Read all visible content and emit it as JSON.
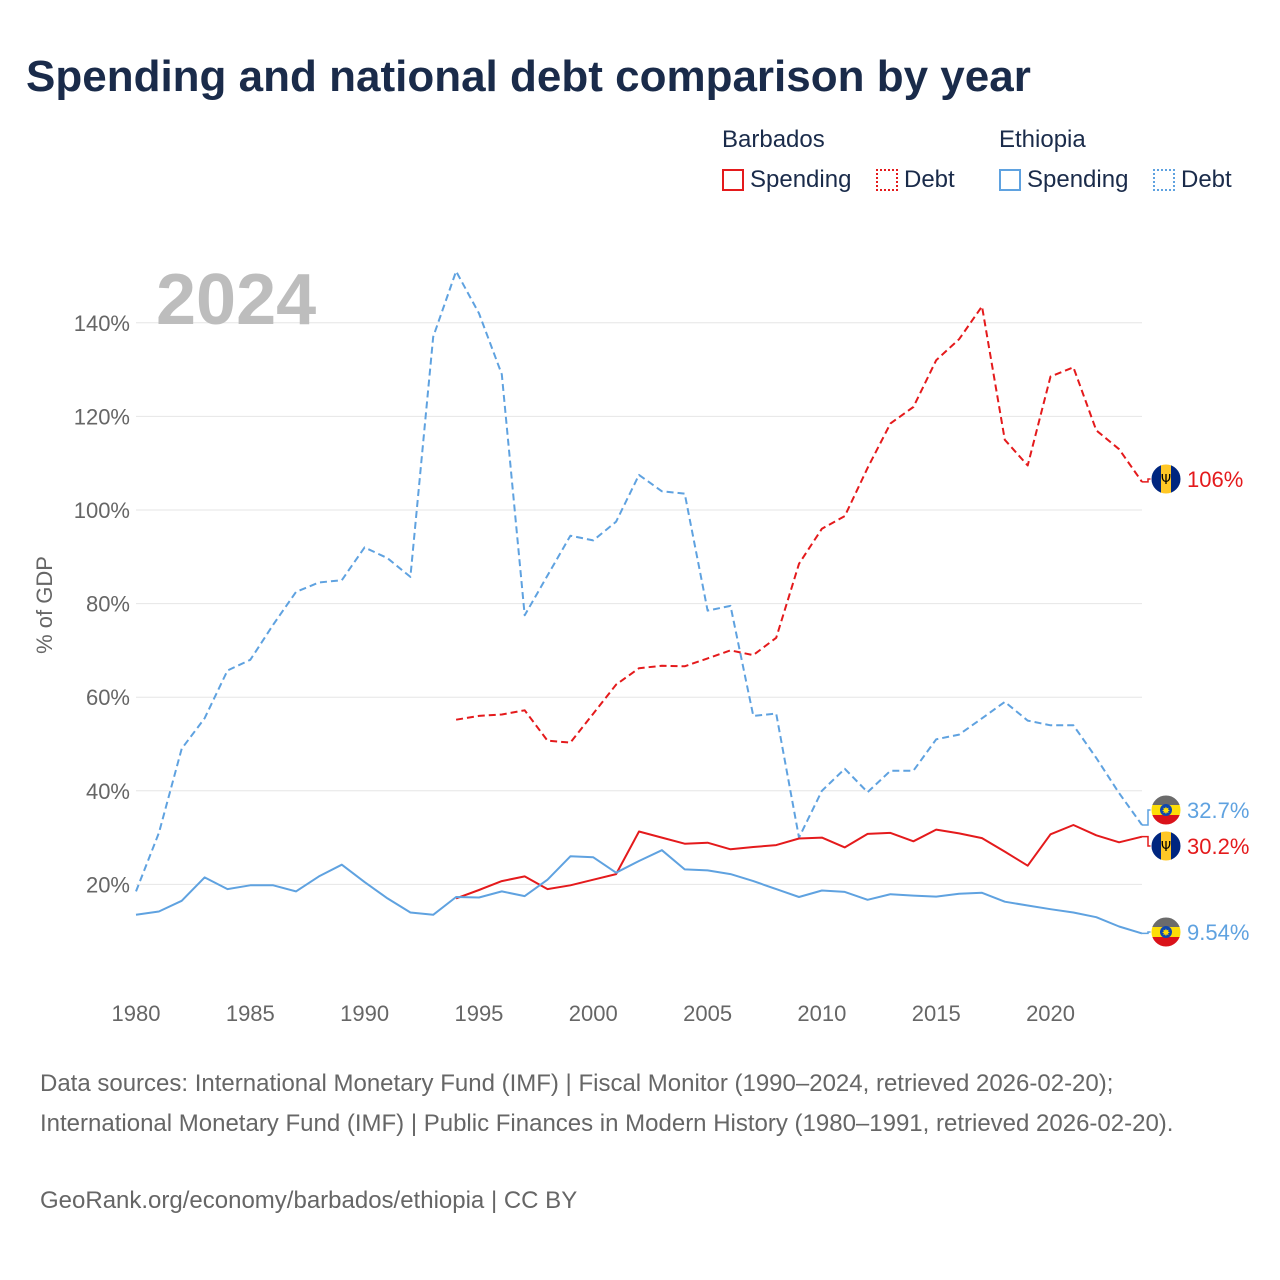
{
  "title": "Spending and national debt comparison by year",
  "legend": {
    "barbados": "Barbados",
    "ethiopia": "Ethiopia",
    "spending": "Spending",
    "debt": "Debt"
  },
  "year_label": "2024",
  "footer": {
    "sources": "Data sources: International Monetary Fund (IMF) | Fiscal Monitor (1990–2024, retrieved 2026-02-20); International Monetary Fund (IMF) | Public Finances in Modern History (1980–1991, retrieved 2026-02-20).",
    "credit": "GeoRank.org/economy/barbados/ethiopia | CC BY"
  },
  "colors": {
    "barbados": "#e41a1c",
    "ethiopia": "#5fa2e0",
    "grid": "#e6e6e6",
    "text": "#666666"
  },
  "chart_data": {
    "type": "line",
    "ylabel": "% of GDP",
    "xlim": [
      1980,
      2024
    ],
    "ylim": [
      0,
      150
    ],
    "y_ticks": [
      20,
      40,
      60,
      80,
      100,
      120,
      140
    ],
    "y_tick_labels": [
      "20%",
      "40%",
      "60%",
      "80%",
      "100%",
      "120%",
      "140%"
    ],
    "x_ticks": [
      1980,
      1985,
      1990,
      1995,
      2000,
      2005,
      2010,
      2015,
      2020
    ],
    "x_tick_labels": [
      "1980",
      "1985",
      "1990",
      "1995",
      "2000",
      "2005",
      "2010",
      "2015",
      "2020"
    ],
    "series": [
      {
        "name": "Ethiopia Debt",
        "country": "ethiopia",
        "style": "dashed",
        "end_label": "32.7%",
        "x": [
          1980,
          1981,
          1982,
          1983,
          1984,
          1985,
          1986,
          1987,
          1988,
          1989,
          1990,
          1991,
          1992,
          1993,
          1994,
          1995,
          1996,
          1997,
          1998,
          1999,
          2000,
          2001,
          2002,
          2003,
          2004,
          2005,
          2006,
          2007,
          2008,
          2009,
          2010,
          2011,
          2012,
          2013,
          2014,
          2015,
          2016,
          2017,
          2018,
          2019,
          2020,
          2021,
          2022,
          2023,
          2024
        ],
        "values": [
          18.5,
          31,
          49,
          55.5,
          65.7,
          68,
          75.5,
          82.5,
          84.5,
          85,
          92,
          89.7,
          85.7,
          137,
          151,
          142,
          129,
          77.5,
          86,
          94.5,
          93.5,
          97.5,
          107.5,
          104,
          103.5,
          78.5,
          79.5,
          56,
          56.5,
          30,
          40,
          44.7,
          39.7,
          44.3,
          44.3,
          51,
          52,
          55.5,
          59,
          55,
          54,
          54,
          47,
          39.5,
          32.7
        ]
      },
      {
        "name": "Barbados Debt",
        "country": "barbados",
        "style": "dashed",
        "end_label": "106%",
        "x": [
          1994,
          1995,
          1996,
          1997,
          1998,
          1999,
          2000,
          2001,
          2002,
          2003,
          2004,
          2005,
          2006,
          2007,
          2008,
          2009,
          2010,
          2011,
          2012,
          2013,
          2014,
          2015,
          2016,
          2017,
          2018,
          2019,
          2020,
          2021,
          2022,
          2023,
          2024
        ],
        "values": [
          55.2,
          56,
          56.3,
          57.2,
          50.7,
          50.3,
          56.5,
          62.7,
          66.2,
          66.7,
          66.6,
          68.3,
          70,
          69,
          72.7,
          88.5,
          96,
          98.7,
          109,
          118.5,
          122,
          132,
          136.5,
          143.5,
          115,
          109.5,
          128.5,
          130.5,
          117,
          113,
          106
        ]
      },
      {
        "name": "Barbados Spending",
        "country": "barbados",
        "style": "solid",
        "end_label": "30.2%",
        "x": [
          1994,
          1995,
          1996,
          1997,
          1998,
          1999,
          2000,
          2001,
          2002,
          2003,
          2004,
          2005,
          2006,
          2007,
          2008,
          2009,
          2010,
          2011,
          2012,
          2013,
          2014,
          2015,
          2016,
          2017,
          2018,
          2019,
          2020,
          2021,
          2022,
          2023,
          2024
        ],
        "values": [
          17,
          18.8,
          20.7,
          21.7,
          19,
          19.8,
          21,
          22.2,
          31.3,
          30,
          28.7,
          28.9,
          27.5,
          28,
          28.4,
          29.8,
          30,
          27.9,
          30.8,
          31,
          29.2,
          31.7,
          30.9,
          29.9,
          27,
          24,
          30.7,
          32.7,
          30.5,
          29,
          30.2
        ]
      },
      {
        "name": "Ethiopia Spending",
        "country": "ethiopia",
        "style": "solid",
        "end_label": "9.54%",
        "x": [
          1980,
          1981,
          1982,
          1983,
          1984,
          1985,
          1986,
          1987,
          1988,
          1989,
          1990,
          1991,
          1992,
          1993,
          1994,
          1995,
          1996,
          1997,
          1998,
          1999,
          2000,
          2001,
          2002,
          2003,
          2004,
          2005,
          2006,
          2007,
          2008,
          2009,
          2010,
          2011,
          2012,
          2013,
          2014,
          2015,
          2016,
          2017,
          2018,
          2019,
          2020,
          2021,
          2022,
          2023,
          2024
        ],
        "values": [
          13.5,
          14.2,
          16.5,
          21.5,
          19,
          19.8,
          19.8,
          18.5,
          21.7,
          24.2,
          20.5,
          17,
          14,
          13.5,
          17.3,
          17.2,
          18.5,
          17.5,
          21,
          26,
          25.8,
          22.5,
          25,
          27.3,
          23.2,
          23,
          22.2,
          20.7,
          19,
          17.3,
          18.7,
          18.4,
          16.7,
          17.9,
          17.6,
          17.4,
          18,
          18.2,
          16.3,
          15.5,
          14.7,
          14,
          13,
          11,
          9.54
        ]
      }
    ]
  }
}
